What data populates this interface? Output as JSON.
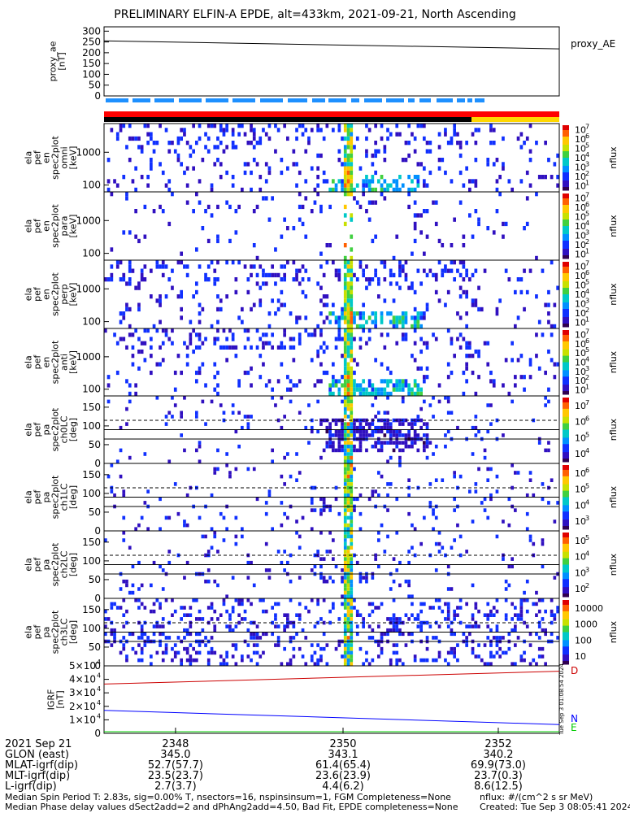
{
  "title": "PRELIMINARY ELFIN-A EPDE, alt=433km, 2021-09-21, North Ascending",
  "stamp": "Tue Sep 3 01:08:54 2024",
  "colors": {
    "spin_bar": "#1e90ff",
    "status_red": "#ff0000",
    "status_black": "#000000",
    "status_yellow": "#ffd700",
    "D": "#cc0000",
    "N": "#0000ff",
    "E": "#00cc00"
  },
  "chart_data": [
    {
      "id": "proxy_ae",
      "type": "line",
      "ylabel": [
        "proxy_ae",
        "[nT]"
      ],
      "yticks": [
        "300",
        "250",
        "200",
        "150",
        "100",
        "50",
        "0"
      ],
      "ylim": [
        0,
        320
      ],
      "legend": "proxy_AE",
      "x": [
        0,
        1
      ],
      "y": [
        255,
        218
      ]
    },
    {
      "id": "en_omni",
      "type": "heatmap",
      "ylabel": [
        "ela",
        "pef",
        "en",
        "spec2plot",
        "omni",
        "[keV]"
      ],
      "yticks": [
        "1000",
        "100"
      ],
      "colorbar": {
        "label": "nflux",
        "ticks": [
          "10",
          "10",
          "10",
          "10",
          "10",
          "10",
          "10"
        ],
        "exps": [
          "7",
          "6",
          "5",
          "4",
          "3",
          "2",
          "1"
        ]
      }
    },
    {
      "id": "en_para",
      "type": "heatmap",
      "ylabel": [
        "ela",
        "pef",
        "en",
        "spec2plot",
        "para",
        "[keV]"
      ],
      "yticks": [
        "1000",
        "100"
      ],
      "colorbar": {
        "label": "nflux",
        "ticks": [
          "10",
          "10",
          "10",
          "10",
          "10",
          "10",
          "10"
        ],
        "exps": [
          "7",
          "6",
          "5",
          "4",
          "3",
          "2",
          "1"
        ]
      }
    },
    {
      "id": "en_perp",
      "type": "heatmap",
      "ylabel": [
        "ela",
        "pef",
        "en",
        "spec2plot",
        "perp",
        "[keV]"
      ],
      "yticks": [
        "1000",
        "100"
      ],
      "colorbar": {
        "label": "nflux",
        "ticks": [
          "10",
          "10",
          "10",
          "10",
          "10",
          "10",
          "10"
        ],
        "exps": [
          "7",
          "6",
          "5",
          "4",
          "3",
          "2",
          "1"
        ]
      }
    },
    {
      "id": "en_anti",
      "type": "heatmap",
      "ylabel": [
        "ela",
        "pef",
        "en",
        "spec2plot",
        "anti",
        "[keV]"
      ],
      "yticks": [
        "1000",
        "100"
      ],
      "colorbar": {
        "label": "nflux",
        "ticks": [
          "10",
          "10",
          "10",
          "10",
          "10",
          "10",
          "10"
        ],
        "exps": [
          "7",
          "6",
          "5",
          "4",
          "3",
          "2",
          "1"
        ]
      }
    },
    {
      "id": "pa_ch0",
      "type": "heatmap",
      "ylabel": [
        "ela",
        "pef",
        "pa",
        "spec2plot",
        "ch0LC",
        "[deg]"
      ],
      "yticks": [
        "150",
        "100",
        "50",
        "0"
      ],
      "ylim": [
        0,
        180
      ],
      "lines": [
        {
          "value": 65,
          "style": "solid"
        },
        {
          "value": 90,
          "style": "solid"
        },
        {
          "value": 115,
          "style": "dashed"
        }
      ],
      "colorbar": {
        "label": "nflux",
        "ticks": [
          "10",
          "10",
          "10",
          "10"
        ],
        "exps": [
          "7",
          "6",
          "5",
          "4"
        ]
      }
    },
    {
      "id": "pa_ch1",
      "type": "heatmap",
      "ylabel": [
        "ela",
        "pef",
        "pa",
        "spec2plot",
        "ch1LC",
        "[deg]"
      ],
      "yticks": [
        "150",
        "100",
        "50",
        "0"
      ],
      "ylim": [
        0,
        180
      ],
      "lines": [
        {
          "value": 65,
          "style": "solid"
        },
        {
          "value": 90,
          "style": "solid"
        },
        {
          "value": 115,
          "style": "dashed"
        }
      ],
      "colorbar": {
        "label": "nflux",
        "ticks": [
          "10",
          "10",
          "10",
          "10"
        ],
        "exps": [
          "6",
          "5",
          "4",
          "3"
        ]
      }
    },
    {
      "id": "pa_ch2",
      "type": "heatmap",
      "ylabel": [
        "ela",
        "pef",
        "pa",
        "spec2plot",
        "ch2LC",
        "[deg]"
      ],
      "yticks": [
        "150",
        "100",
        "50",
        "0"
      ],
      "ylim": [
        0,
        180
      ],
      "lines": [
        {
          "value": 65,
          "style": "solid"
        },
        {
          "value": 90,
          "style": "solid"
        },
        {
          "value": 115,
          "style": "dashed"
        }
      ],
      "colorbar": {
        "label": "nflux",
        "ticks": [
          "10",
          "10",
          "10",
          "10"
        ],
        "exps": [
          "5",
          "4",
          "3",
          "2"
        ]
      }
    },
    {
      "id": "pa_ch3",
      "type": "heatmap",
      "ylabel": [
        "ela",
        "pef",
        "pa",
        "spec2plot",
        "ch3LC",
        "[deg]"
      ],
      "yticks": [
        "150",
        "100",
        "50",
        "0"
      ],
      "ylim": [
        0,
        180
      ],
      "lines": [
        {
          "value": 65,
          "style": "solid"
        },
        {
          "value": 90,
          "style": "solid"
        },
        {
          "value": 115,
          "style": "dashed"
        }
      ],
      "colorbar": {
        "label": "nflux",
        "ticks": [
          "10000",
          "1000",
          "100",
          "10"
        ],
        "exps": [
          "",
          "",
          "",
          ""
        ]
      }
    },
    {
      "id": "igrf",
      "type": "line",
      "ylabel": [
        "IGRF",
        "[nT]"
      ],
      "yticks": [
        {
          "m": "5×10",
          "e": "4"
        },
        {
          "m": "4×10",
          "e": "4"
        },
        {
          "m": "3×10",
          "e": "4"
        },
        {
          "m": "2×10",
          "e": "4"
        },
        {
          "m": "1×10",
          "e": "4"
        },
        {
          "m": "0",
          "e": ""
        }
      ],
      "ylim": [
        0,
        50000
      ],
      "series": [
        {
          "name": "D",
          "color": "#cc0000",
          "x": [
            0,
            1
          ],
          "y": [
            36500,
            46000
          ]
        },
        {
          "name": "N",
          "color": "#0000ff",
          "x": [
            0,
            1
          ],
          "y": [
            17000,
            6500
          ]
        },
        {
          "name": "E",
          "color": "#00cc00",
          "x": [
            0,
            1
          ],
          "y": [
            0,
            0
          ]
        }
      ]
    }
  ],
  "orbit": {
    "ticks": [
      {
        "frac": 0.157,
        "time": "2348",
        "glon": "345.0",
        "mlat": "52.7(57.7)",
        "mlt": "23.5(23.7)",
        "l": "2.7(3.7)"
      },
      {
        "frac": 0.525,
        "time": "2350",
        "glon": "343.1",
        "mlat": "61.4(65.4)",
        "mlt": "23.6(23.9)",
        "l": "4.4(6.2)"
      },
      {
        "frac": 0.866,
        "time": "2352",
        "glon": "340.2",
        "mlat": "69.9(73.0)",
        "mlt": "23.7(0.3)",
        "l": "8.6(12.5)"
      }
    ],
    "labels": {
      "time": "2021 Sep 21",
      "glon": "GLON (east)",
      "mlat": "MLAT-igrf(dip)",
      "mlt": "MLT-igrf(dip)",
      "l": "L-igrf(dip)"
    }
  },
  "footer": {
    "line1": "Median Spin Period T: 2.83s, sig=0.00% T, nsectors=16, nspinsinsum=1, FGM Completeness=None",
    "line2": "Median Phase delay values dSect2add=2 and dPhAng2add=4.50, Bad Fit, EPDE completeness=None",
    "units": "nflux: #/(cm^2 s sr MeV)",
    "created": "Created: Tue Sep  3 08:05:41 2024"
  }
}
